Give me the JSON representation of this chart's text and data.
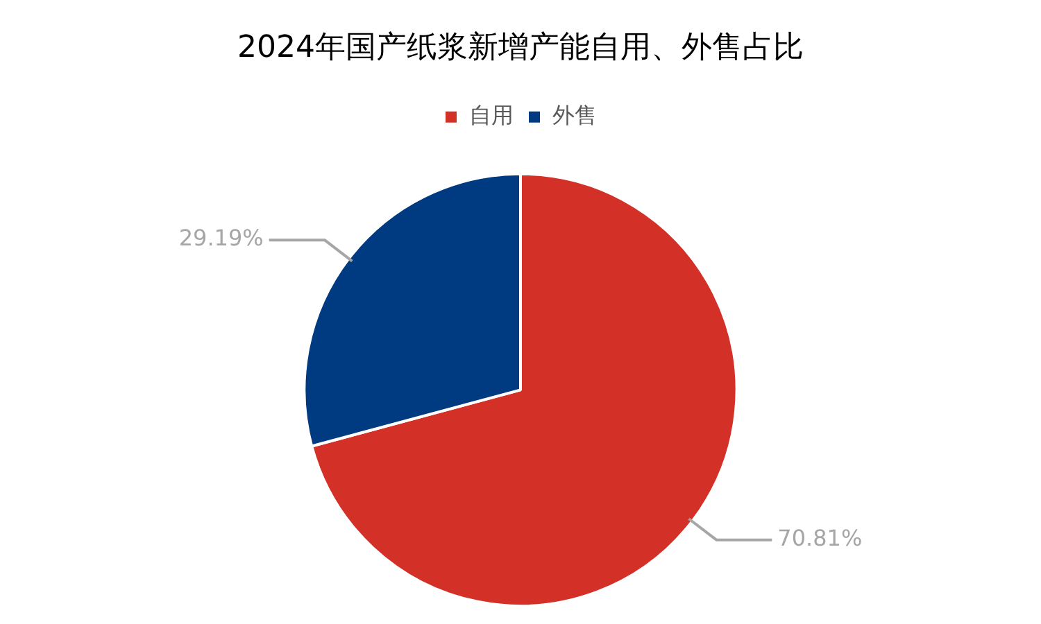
{
  "chart_data": {
    "type": "pie",
    "title": "2024年国产纸浆新增产能自用、外售占比",
    "categories": [
      "自用",
      "外售"
    ],
    "values": [
      70.81,
      29.19
    ],
    "colors": [
      "#d33027",
      "#003a80"
    ],
    "value_labels": [
      "70.81%",
      "29.19%"
    ],
    "legend": "top"
  }
}
